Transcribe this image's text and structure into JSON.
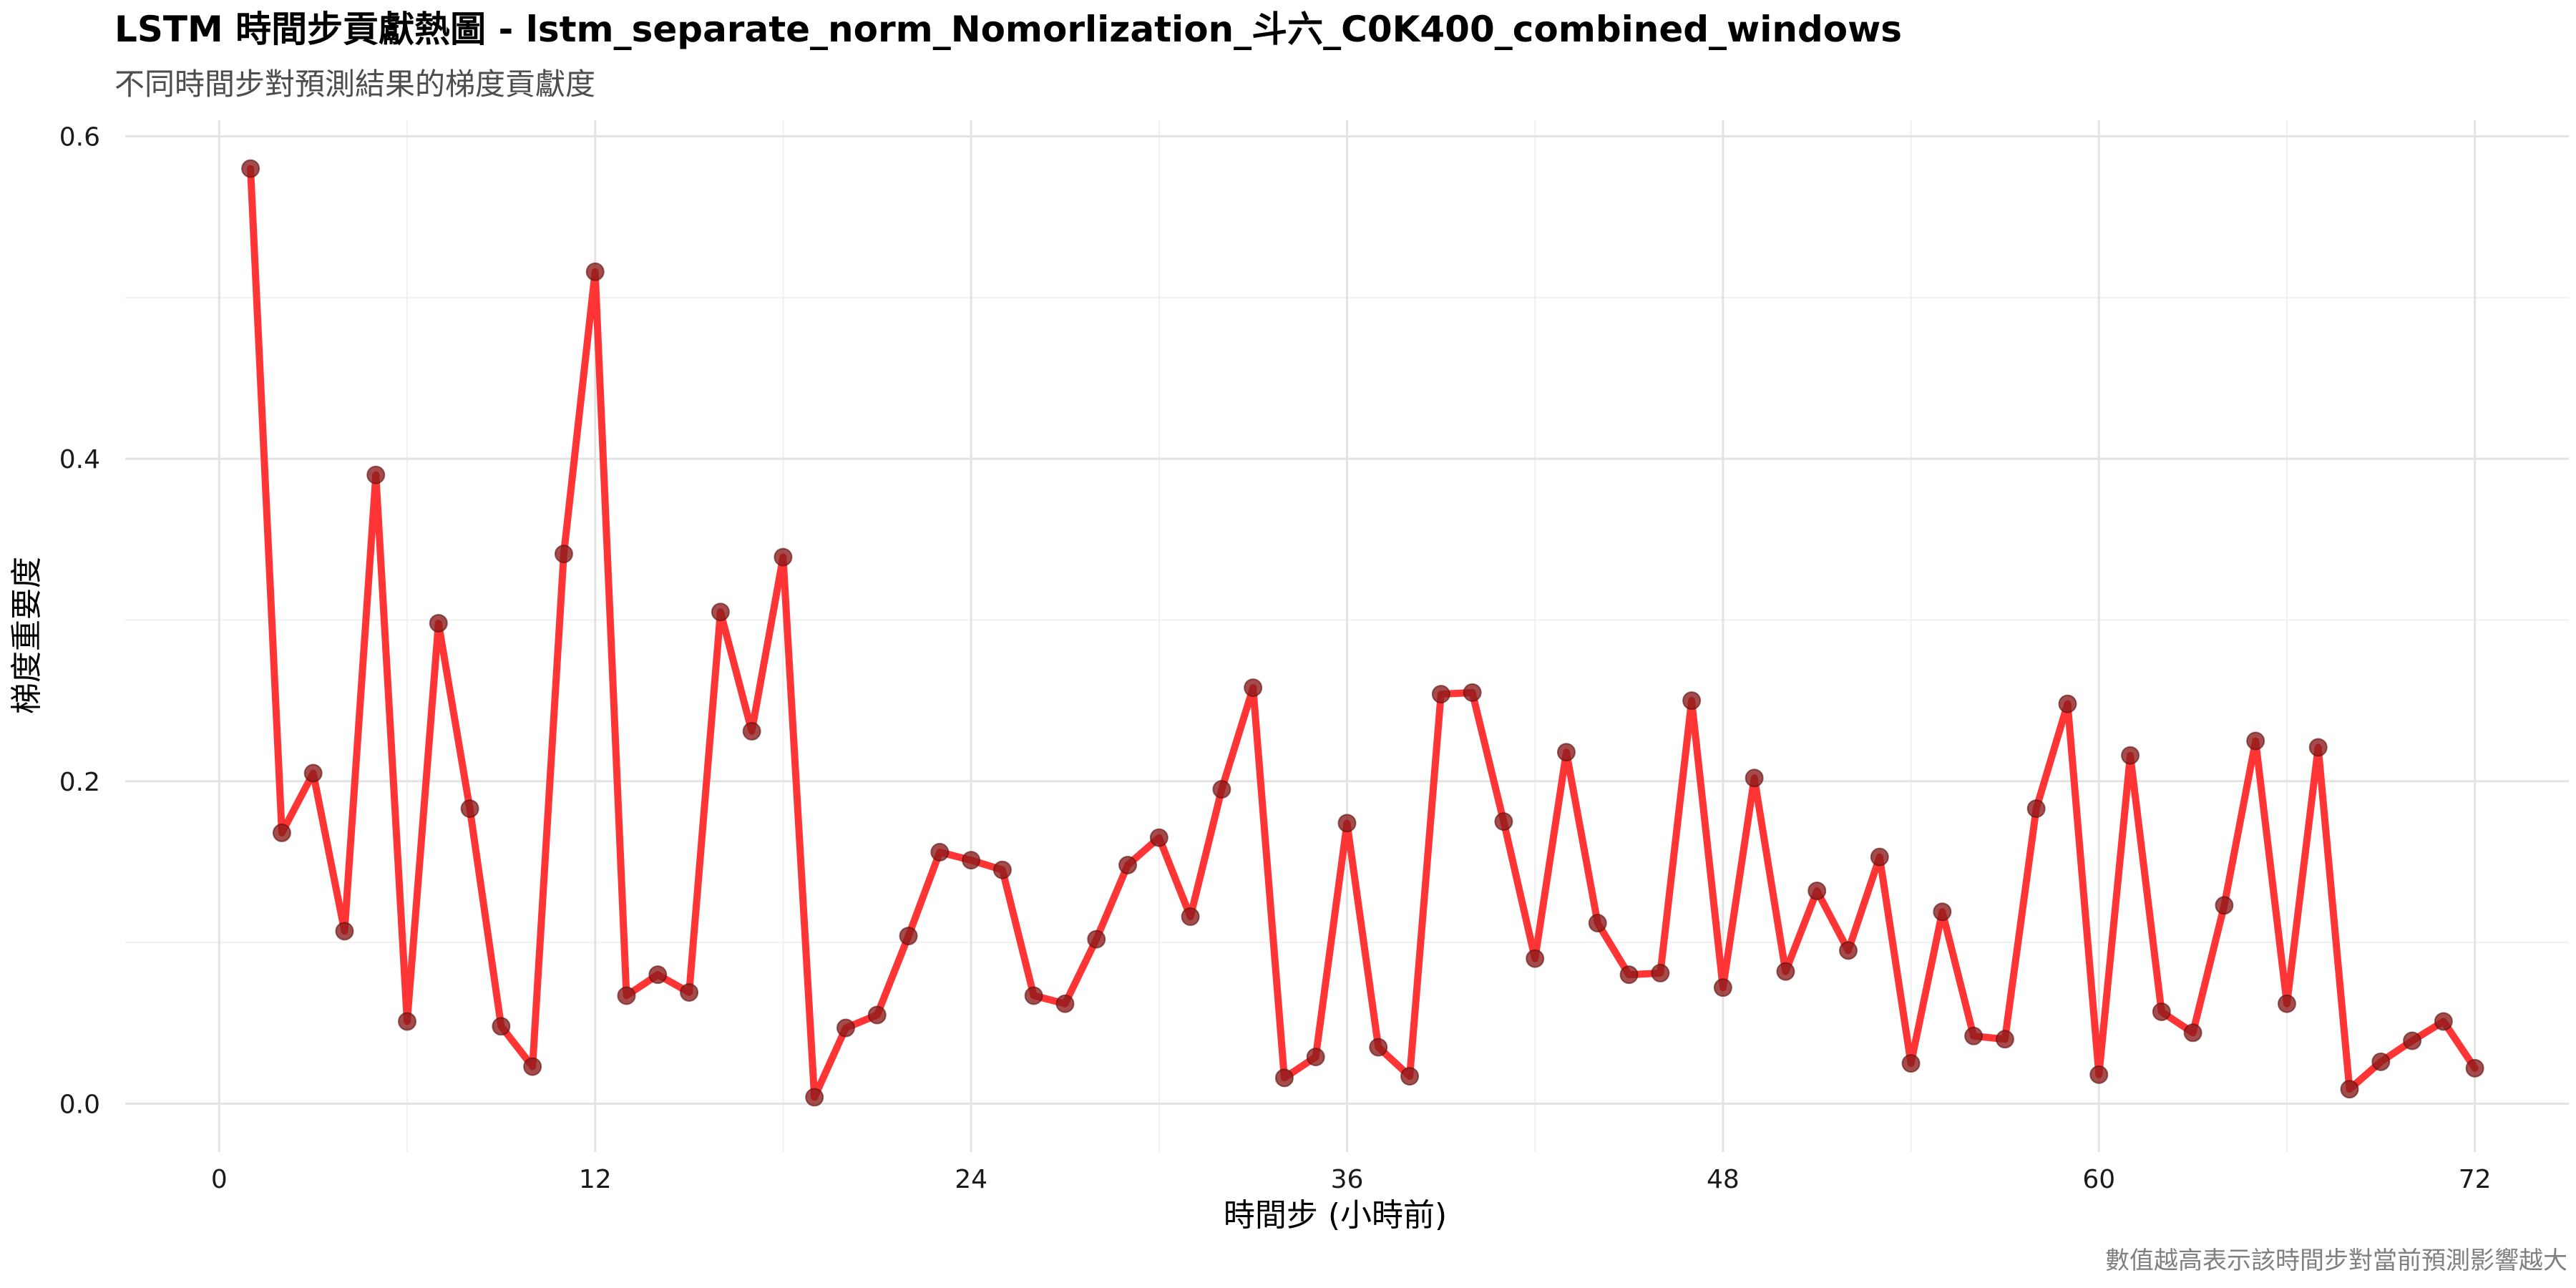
{
  "chart_data": {
    "type": "line",
    "title": "LSTM 時間步貢獻熱圖 - lstm_separate_norm_Nomorlization_斗六_C0K400_combined_windows",
    "subtitle": "不同時間步對預測結果的梯度貢獻度",
    "xlabel": "時間步 (小時前)",
    "ylabel": "梯度重要度",
    "caption": "數值越高表示該時間步對當前預測影響越大",
    "xlim": [
      -3,
      75
    ],
    "ylim": [
      -0.03,
      0.61
    ],
    "x_ticks": [
      0,
      12,
      24,
      36,
      48,
      60,
      72
    ],
    "x_tick_labels": [
      "0",
      "12",
      "24",
      "36",
      "48",
      "60",
      "72"
    ],
    "y_ticks": [
      0.0,
      0.2,
      0.4,
      0.6
    ],
    "y_tick_labels": [
      "0.0",
      "0.2",
      "0.4",
      "0.6"
    ],
    "grid": true,
    "line_color": "#ff2a2a",
    "point_color": "#8b1a1a",
    "x": [
      1,
      2,
      3,
      4,
      5,
      6,
      7,
      8,
      9,
      10,
      11,
      12,
      13,
      14,
      15,
      16,
      17,
      18,
      19,
      20,
      21,
      22,
      23,
      24,
      25,
      26,
      27,
      28,
      29,
      30,
      31,
      32,
      33,
      34,
      35,
      36,
      37,
      38,
      39,
      40,
      41,
      42,
      43,
      44,
      45,
      46,
      47,
      48,
      49,
      50,
      51,
      52,
      53,
      54,
      55,
      56,
      57,
      58,
      59,
      60,
      61,
      62,
      63,
      64,
      65,
      66,
      67,
      68,
      69,
      70,
      71,
      72
    ],
    "values": [
      0.58,
      0.168,
      0.205,
      0.107,
      0.39,
      0.051,
      0.298,
      0.183,
      0.048,
      0.023,
      0.341,
      0.516,
      0.067,
      0.08,
      0.069,
      0.305,
      0.231,
      0.339,
      0.004,
      0.047,
      0.055,
      0.104,
      0.156,
      0.151,
      0.145,
      0.067,
      0.062,
      0.102,
      0.148,
      0.165,
      0.116,
      0.195,
      0.258,
      0.016,
      0.029,
      0.174,
      0.035,
      0.017,
      0.254,
      0.255,
      0.175,
      0.09,
      0.218,
      0.112,
      0.08,
      0.081,
      0.25,
      0.072,
      0.202,
      0.082,
      0.132,
      0.095,
      0.153,
      0.025,
      0.119,
      0.042,
      0.04,
      0.183,
      0.248,
      0.018,
      0.216,
      0.057,
      0.044,
      0.123,
      0.225,
      0.062,
      0.221,
      0.009,
      0.026,
      0.039,
      0.051,
      0.022
    ]
  }
}
